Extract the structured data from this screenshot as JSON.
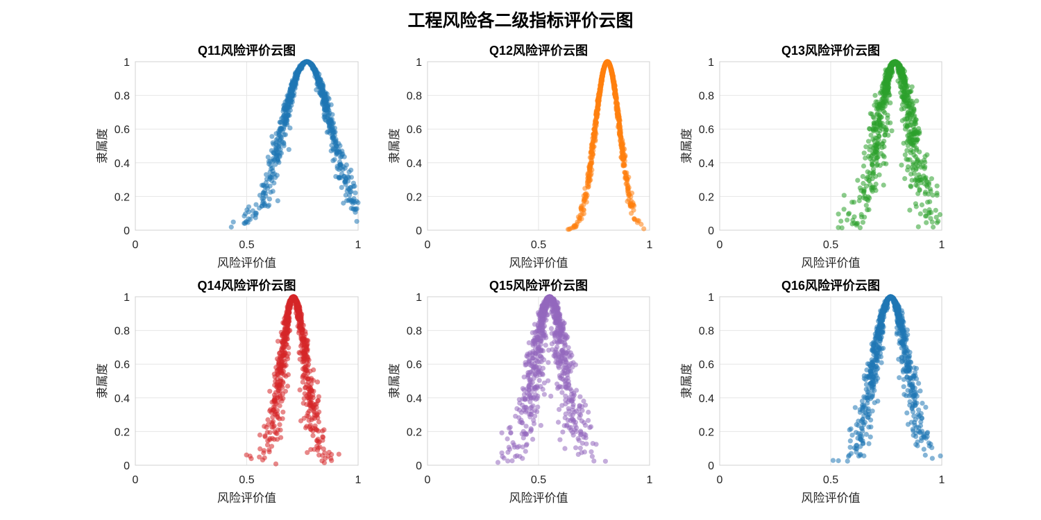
{
  "figure": {
    "title": "工程风险各二级指标评价云图"
  },
  "chart_data": [
    {
      "type": "scatter",
      "title": "Q11风险评价云图",
      "xlabel": "风险评价值",
      "ylabel": "隶属度",
      "xlim": [
        0,
        1
      ],
      "ylim": [
        0,
        1
      ],
      "xticks": [
        "0",
        "0.5",
        "1"
      ],
      "yticks": [
        "0",
        "0.2",
        "0.4",
        "0.6",
        "0.8",
        "1"
      ],
      "grid": true,
      "color": "#1f77b4",
      "cloud": {
        "Ex": 0.77,
        "En": 0.11,
        "He": 0.012,
        "points": 900
      }
    },
    {
      "type": "scatter",
      "title": "Q12风险评价云图",
      "xlabel": "风险评价值",
      "ylabel": "隶属度",
      "xlim": [
        0,
        1
      ],
      "ylim": [
        0,
        1
      ],
      "xticks": [
        "0",
        "0.5",
        "1"
      ],
      "yticks": [
        "0",
        "0.2",
        "0.4",
        "0.6",
        "0.8",
        "1"
      ],
      "grid": true,
      "color": "#ff7f0e",
      "cloud": {
        "Ex": 0.81,
        "En": 0.055,
        "He": 0.003,
        "points": 900
      }
    },
    {
      "type": "scatter",
      "title": "Q13风险评价云图",
      "xlabel": "风险评价值",
      "ylabel": "隶属度",
      "xlim": [
        0,
        1
      ],
      "ylim": [
        0,
        1
      ],
      "xticks": [
        "0",
        "0.5",
        "1"
      ],
      "yticks": [
        "0",
        "0.2",
        "0.4",
        "0.6",
        "0.8",
        "1"
      ],
      "grid": true,
      "color": "#2ca02c",
      "cloud": {
        "Ex": 0.79,
        "En": 0.075,
        "He": 0.02,
        "points": 900
      }
    },
    {
      "type": "scatter",
      "title": "Q14风险评价云图",
      "xlabel": "风险评价值",
      "ylabel": "隶属度",
      "xlim": [
        0,
        1
      ],
      "ylim": [
        0,
        1
      ],
      "xticks": [
        "0",
        "0.5",
        "1"
      ],
      "yticks": [
        "0",
        "0.2",
        "0.4",
        "0.6",
        "0.8",
        "1"
      ],
      "grid": true,
      "color": "#d62728",
      "cloud": {
        "Ex": 0.71,
        "En": 0.055,
        "He": 0.012,
        "points": 900
      }
    },
    {
      "type": "scatter",
      "title": "Q15风险评价云图",
      "xlabel": "风险评价值",
      "ylabel": "隶属度",
      "xlim": [
        0,
        1
      ],
      "ylim": [
        0,
        1
      ],
      "xticks": [
        "0",
        "0.5",
        "1"
      ],
      "yticks": [
        "0",
        "0.2",
        "0.4",
        "0.6",
        "0.8",
        "1"
      ],
      "grid": true,
      "color": "#9467bd",
      "cloud": {
        "Ex": 0.55,
        "En": 0.065,
        "He": 0.022,
        "points": 900
      }
    },
    {
      "type": "scatter",
      "title": "Q16风险评价云图",
      "xlabel": "风险评价值",
      "ylabel": "隶属度",
      "xlim": [
        0,
        1
      ],
      "ylim": [
        0,
        1
      ],
      "xticks": [
        "0",
        "0.5",
        "1"
      ],
      "yticks": [
        "0",
        "0.2",
        "0.4",
        "0.6",
        "0.8",
        "1"
      ],
      "grid": true,
      "color": "#1f77b4",
      "cloud": {
        "Ex": 0.77,
        "En": 0.075,
        "He": 0.014,
        "points": 900
      }
    }
  ]
}
